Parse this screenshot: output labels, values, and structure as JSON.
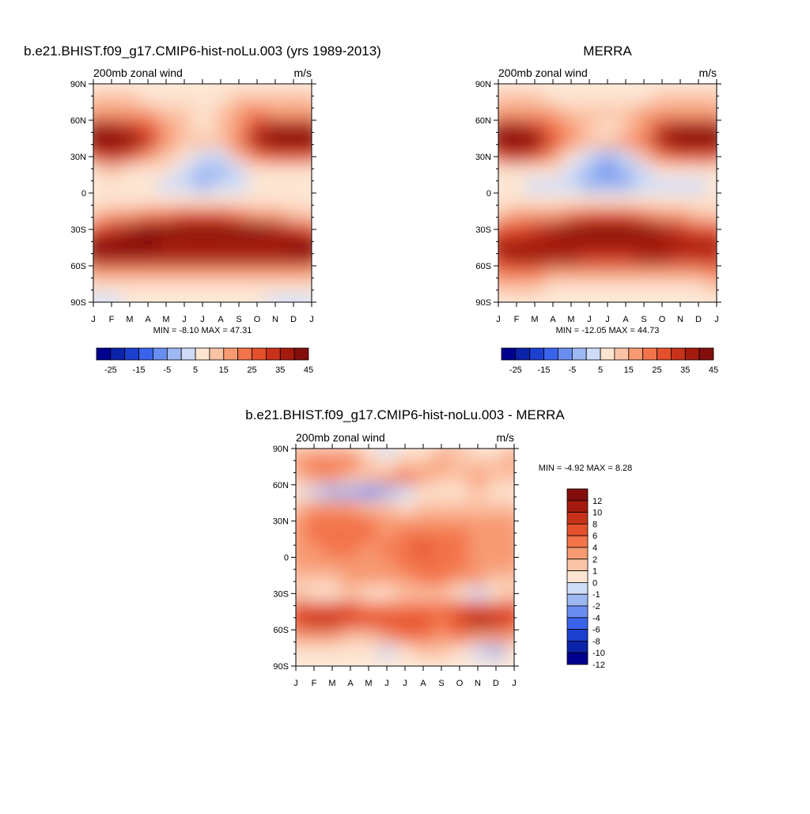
{
  "chart_data": [
    {
      "type": "heatmap",
      "title": "b.e21.BHIST.f09_g17.CMIP6-hist-noLu.003 (yrs 1989-2013)",
      "left_label": "200mb zonal wind",
      "right_label": "m/s",
      "x_ticks": [
        "J",
        "F",
        "M",
        "A",
        "M",
        "J",
        "J",
        "A",
        "S",
        "O",
        "N",
        "D",
        "J"
      ],
      "y_ticks": [
        "90N",
        "60N",
        "30N",
        "0",
        "30S",
        "60S",
        "90S"
      ],
      "min_max": "MIN =  -8.10 MAX =  47.31",
      "colorbar_labels": [
        "-25",
        "-15",
        "-5",
        "5",
        "15",
        "25",
        "35",
        "45"
      ],
      "colorbar_colors": [
        "#00008f",
        "#0a23a8",
        "#1c3fd0",
        "#3a63ec",
        "#6a8ef0",
        "#9eb8f2",
        "#cfdcf7",
        "#fde5d2",
        "#fbc3a6",
        "#f79a72",
        "#f3734a",
        "#e4502c",
        "#c8321a",
        "#a51a0e",
        "#830d0d"
      ],
      "values": [
        [
          2,
          2,
          1,
          1,
          1,
          2,
          2,
          3,
          4,
          4,
          4,
          3,
          2
        ],
        [
          5,
          5,
          5,
          3,
          1,
          1,
          2,
          3,
          5,
          6,
          5,
          5,
          5
        ],
        [
          12,
          12,
          14,
          12,
          8,
          5,
          4,
          5,
          10,
          16,
          14,
          12,
          12
        ],
        [
          30,
          30,
          28,
          20,
          12,
          6,
          4,
          6,
          14,
          28,
          32,
          30,
          30
        ],
        [
          44,
          46,
          40,
          28,
          14,
          8,
          6,
          8,
          16,
          30,
          38,
          42,
          44
        ],
        [
          24,
          26,
          22,
          14,
          6,
          0,
          -4,
          -2,
          6,
          16,
          22,
          22,
          24
        ],
        [
          4,
          5,
          4,
          2,
          0,
          -4,
          -8,
          -6,
          -2,
          2,
          4,
          4,
          4
        ],
        [
          0,
          2,
          2,
          0,
          -2,
          -4,
          -6,
          -5,
          -2,
          0,
          0,
          0,
          0
        ],
        [
          2,
          2,
          2,
          2,
          1,
          0,
          0,
          0,
          0,
          2,
          2,
          2,
          2
        ],
        [
          8,
          10,
          14,
          16,
          18,
          22,
          24,
          22,
          18,
          12,
          10,
          8,
          8
        ],
        [
          24,
          26,
          32,
          38,
          42,
          46,
          47,
          46,
          42,
          36,
          30,
          26,
          24
        ],
        [
          36,
          38,
          38,
          36,
          34,
          34,
          34,
          34,
          34,
          34,
          34,
          36,
          36
        ],
        [
          30,
          32,
          32,
          30,
          30,
          30,
          30,
          30,
          30,
          30,
          30,
          30,
          30
        ],
        [
          14,
          14,
          14,
          12,
          12,
          12,
          14,
          14,
          14,
          14,
          12,
          12,
          14
        ],
        [
          4,
          4,
          4,
          3,
          3,
          3,
          4,
          4,
          3,
          2,
          2,
          3,
          4
        ],
        [
          -1,
          -1,
          0,
          0,
          0,
          0,
          0,
          0,
          0,
          0,
          -2,
          -4,
          -1
        ]
      ]
    },
    {
      "type": "heatmap",
      "title": "MERRA",
      "left_label": "200mb zonal wind",
      "right_label": "m/s",
      "x_ticks": [
        "J",
        "F",
        "M",
        "A",
        "M",
        "J",
        "J",
        "A",
        "S",
        "O",
        "N",
        "D",
        "J"
      ],
      "y_ticks": [
        "90N",
        "60N",
        "30N",
        "0",
        "30S",
        "60S",
        "90S"
      ],
      "min_max": "MIN = -12.05 MAX =  44.73",
      "colorbar_labels": [
        "-25",
        "-15",
        "-5",
        "5",
        "15",
        "25",
        "35",
        "45"
      ],
      "colorbar_colors": [
        "#00008f",
        "#0a23a8",
        "#1c3fd0",
        "#3a63ec",
        "#6a8ef0",
        "#9eb8f2",
        "#cfdcf7",
        "#fde5d2",
        "#fbc3a6",
        "#f79a72",
        "#f3734a",
        "#e4502c",
        "#c8321a",
        "#a51a0e",
        "#830d0d"
      ],
      "values": [
        [
          2,
          2,
          1,
          1,
          1,
          1,
          2,
          3,
          4,
          4,
          4,
          3,
          2
        ],
        [
          6,
          6,
          5,
          3,
          2,
          1,
          1,
          2,
          4,
          6,
          6,
          6,
          6
        ],
        [
          12,
          12,
          12,
          10,
          8,
          6,
          5,
          6,
          10,
          14,
          14,
          12,
          12
        ],
        [
          30,
          30,
          26,
          18,
          10,
          6,
          4,
          6,
          14,
          28,
          32,
          30,
          30
        ],
        [
          40,
          42,
          36,
          24,
          12,
          8,
          8,
          10,
          18,
          30,
          38,
          42,
          40
        ],
        [
          24,
          26,
          20,
          12,
          4,
          -2,
          -6,
          -4,
          6,
          16,
          22,
          22,
          24
        ],
        [
          4,
          4,
          2,
          0,
          -4,
          -8,
          -12,
          -10,
          -4,
          0,
          2,
          2,
          4
        ],
        [
          0,
          0,
          -2,
          -2,
          -4,
          -6,
          -8,
          -6,
          -4,
          -2,
          -2,
          -4,
          0
        ],
        [
          2,
          2,
          2,
          2,
          1,
          0,
          0,
          0,
          0,
          2,
          2,
          2,
          2
        ],
        [
          8,
          10,
          12,
          14,
          16,
          20,
          22,
          20,
          16,
          12,
          10,
          8,
          8
        ],
        [
          22,
          24,
          28,
          34,
          38,
          42,
          44,
          42,
          38,
          32,
          28,
          24,
          22
        ],
        [
          30,
          32,
          34,
          34,
          32,
          32,
          32,
          32,
          32,
          32,
          30,
          30,
          30
        ],
        [
          28,
          30,
          30,
          30,
          30,
          28,
          28,
          28,
          30,
          30,
          28,
          28,
          28
        ],
        [
          16,
          16,
          16,
          14,
          14,
          14,
          14,
          14,
          14,
          14,
          14,
          14,
          16
        ],
        [
          6,
          6,
          6,
          4,
          4,
          4,
          4,
          4,
          4,
          4,
          4,
          4,
          6
        ],
        [
          2,
          2,
          2,
          2,
          2,
          2,
          2,
          2,
          2,
          2,
          2,
          2,
          2
        ]
      ]
    },
    {
      "type": "heatmap",
      "title": "b.e21.BHIST.f09_g17.CMIP6-hist-noLu.003 - MERRA",
      "left_label": "200mb zonal wind",
      "right_label": "m/s",
      "x_ticks": [
        "J",
        "F",
        "M",
        "A",
        "M",
        "J",
        "J",
        "A",
        "S",
        "O",
        "N",
        "D",
        "J"
      ],
      "y_ticks": [
        "90N",
        "60N",
        "30N",
        "0",
        "30S",
        "60S",
        "90S"
      ],
      "min_max": "MIN =  -4.92 MAX =   8.28",
      "colorbar_labels": [
        "12",
        "10",
        "8",
        "6",
        "4",
        "2",
        "1",
        "0",
        "-1",
        "-2",
        "-4",
        "-6",
        "-8",
        "-10",
        "-12"
      ],
      "colorbar_colors": [
        "#830d0d",
        "#a51a0e",
        "#c8321a",
        "#e4502c",
        "#f3734a",
        "#f79a72",
        "#fbc3a6",
        "#fde5d2",
        "#cfdcf7",
        "#9eb8f2",
        "#6a8ef0",
        "#3a63ec",
        "#1c3fd0",
        "#0a23a8",
        "#00008f"
      ],
      "values": [
        [
          0.5,
          0.5,
          0.5,
          0.2,
          -1,
          -2,
          -1,
          -0.5,
          0.5,
          0.5,
          -0.5,
          -0.5,
          0.5
        ],
        [
          1.5,
          2.5,
          3,
          2.5,
          0.5,
          -1,
          0.5,
          0.5,
          1,
          0.5,
          0.5,
          0.5,
          1.5
        ],
        [
          0.5,
          1,
          1,
          0.5,
          0.5,
          1.5,
          3,
          1,
          0.5,
          0.5,
          1,
          0.5,
          0.5
        ],
        [
          -1,
          -2,
          -2.5,
          -4,
          -5,
          -3,
          -2,
          -1,
          -1,
          -0.5,
          0.5,
          -0.5,
          -1
        ],
        [
          0.5,
          1,
          1.5,
          1,
          0.5,
          0.5,
          -0.5,
          0.5,
          0.5,
          0.5,
          0.5,
          0.5,
          0.5
        ],
        [
          1,
          2,
          3,
          3.5,
          2.5,
          1,
          1.5,
          1.5,
          1,
          1,
          1,
          1,
          1
        ],
        [
          1,
          2,
          3,
          3,
          2,
          1,
          2,
          3,
          3,
          2,
          1.5,
          1,
          1
        ],
        [
          1,
          1.5,
          2,
          2,
          1.5,
          2,
          3.5,
          4,
          3.5,
          2,
          1.5,
          1,
          1
        ],
        [
          1,
          1,
          1.5,
          1.5,
          1,
          1.5,
          3,
          3.5,
          3,
          2,
          1.5,
          1,
          1
        ],
        [
          0.5,
          0.5,
          0.5,
          1,
          1,
          1,
          1.5,
          2,
          2,
          1.5,
          1,
          0.5,
          0.5
        ],
        [
          0.5,
          -0.5,
          -0.5,
          0.5,
          -0.5,
          -0.5,
          0.5,
          0.5,
          0.5,
          -0.5,
          -2,
          -1,
          0.5
        ],
        [
          4,
          5,
          5,
          4,
          3,
          3,
          3,
          3,
          3,
          4,
          5,
          4,
          4
        ],
        [
          5,
          6,
          6,
          5,
          4,
          4,
          4,
          4,
          3,
          5,
          8,
          6,
          5
        ],
        [
          1,
          1.5,
          1,
          0.5,
          0.5,
          1.5,
          2,
          2,
          1.5,
          2,
          1.5,
          1.5,
          1
        ],
        [
          -1,
          -1,
          -0.5,
          -0.5,
          -1,
          -1.5,
          -0.5,
          0.5,
          0.5,
          -0.5,
          -2,
          -3,
          -1
        ],
        [
          -0.5,
          -1,
          -1,
          -1,
          -1,
          -1,
          -0.5,
          -0.5,
          -0.5,
          -1,
          -0.5,
          -0.5,
          -0.5
        ]
      ]
    }
  ]
}
